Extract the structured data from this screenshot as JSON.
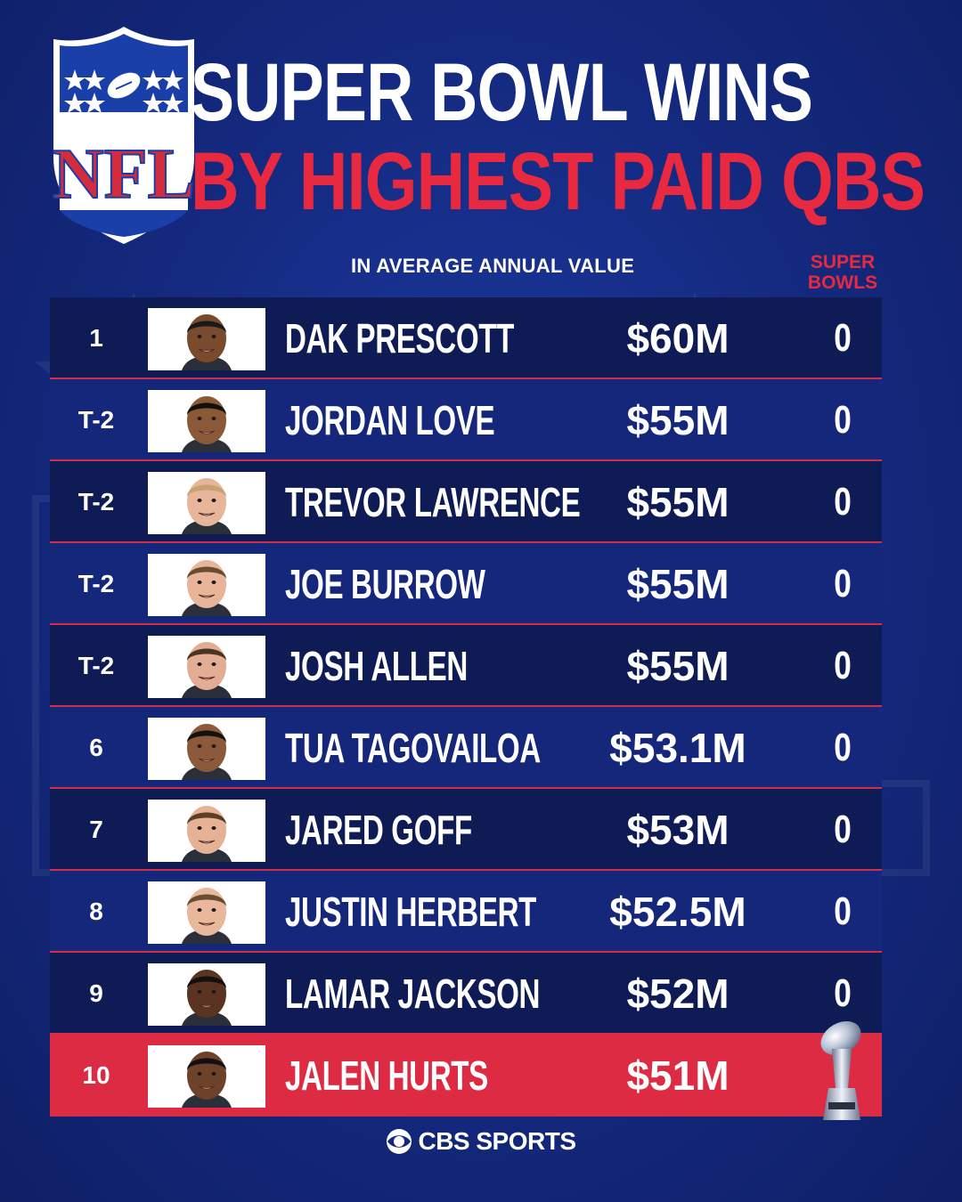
{
  "header": {
    "title_line1": "SUPER BOWL WINS",
    "title_line2": "BY HIGHEST PAID QBS",
    "subtitle": "IN AVERAGE ANNUAL VALUE",
    "wins_column_header": "SUPER BOWLS",
    "logo_text": "NFL"
  },
  "colors": {
    "background": "#14297e",
    "row_dark": "#0e1b55",
    "row_mid": "#15277a",
    "accent_red": "#e8293f",
    "separator": "#d32d4c",
    "text": "#ffffff"
  },
  "rows": [
    {
      "rank": "1",
      "name": "DAK PRESCOTT",
      "salary": "$60M",
      "super_bowls": "0",
      "skin": "#7a4a2c",
      "hair": "#1a1a1a"
    },
    {
      "rank": "T-2",
      "name": "JORDAN LOVE",
      "salary": "$55M",
      "super_bowls": "0",
      "skin": "#8a5a38",
      "hair": "#111111"
    },
    {
      "rank": "T-2",
      "name": "TREVOR LAWRENCE",
      "salary": "$55M",
      "super_bowls": "0",
      "skin": "#e6b59a",
      "hair": "#c4a273"
    },
    {
      "rank": "T-2",
      "name": "JOE BURROW",
      "salary": "$55M",
      "super_bowls": "0",
      "skin": "#e8b59b",
      "hair": "#6b4a2e"
    },
    {
      "rank": "T-2",
      "name": "JOSH ALLEN",
      "salary": "$55M",
      "super_bowls": "0",
      "skin": "#e2ad92",
      "hair": "#4a3420"
    },
    {
      "rank": "6",
      "name": "TUA TAGOVAILOA",
      "salary": "$53.1M",
      "super_bowls": "0",
      "skin": "#8c5a3a",
      "hair": "#111111"
    },
    {
      "rank": "7",
      "name": "JARED GOFF",
      "salary": "$53M",
      "super_bowls": "0",
      "skin": "#e6b296",
      "hair": "#5a3e26"
    },
    {
      "rank": "8",
      "name": "JUSTIN HERBERT",
      "salary": "$52.5M",
      "super_bowls": "0",
      "skin": "#e8b79c",
      "hair": "#6b4c30"
    },
    {
      "rank": "9",
      "name": "LAMAR JACKSON",
      "salary": "$52M",
      "super_bowls": "0",
      "skin": "#5a3420",
      "hair": "#111111"
    },
    {
      "rank": "10",
      "name": "JALEN HURTS",
      "salary": "$51M",
      "super_bowls": "",
      "skin": "#6e4228",
      "hair": "#111111"
    }
  ],
  "footer": {
    "brand": "CBS SPORTS"
  }
}
